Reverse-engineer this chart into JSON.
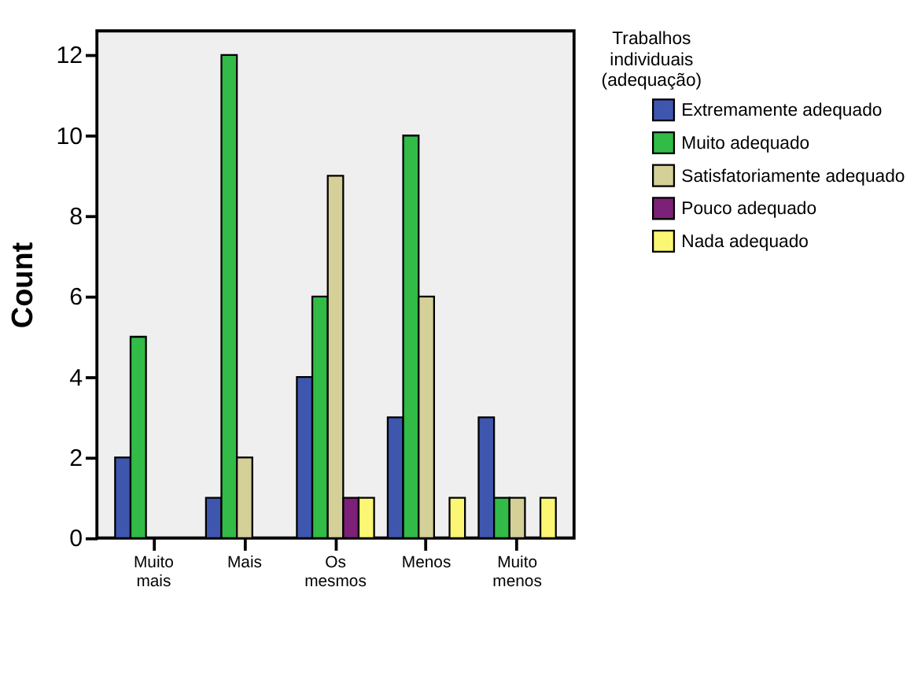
{
  "chart_data": {
    "type": "bar",
    "ylabel": "Count",
    "legend_title": "Trabalhos individuais (adequação)",
    "categories": [
      "Muito mais",
      "Mais",
      "Os mesmos",
      "Menos",
      "Muito menos"
    ],
    "series": [
      {
        "name": "Extremamente adequado",
        "color": "#3f56ae",
        "values": [
          2,
          1,
          4,
          3,
          3
        ]
      },
      {
        "name": "Muito adequado",
        "color": "#32bb46",
        "values": [
          5,
          12,
          6,
          10,
          1
        ]
      },
      {
        "name": "Satisfatoriamente adequado",
        "color": "#d5cf98",
        "values": [
          null,
          2,
          9,
          6,
          1
        ]
      },
      {
        "name": "Pouco adequado",
        "color": "#7d2178",
        "values": [
          null,
          null,
          1,
          null,
          null
        ]
      },
      {
        "name": "Nada adequado",
        "color": "#fbf674",
        "values": [
          null,
          null,
          1,
          1,
          1
        ]
      }
    ],
    "ylim": [
      0,
      12.6
    ],
    "yticks": [
      0,
      2,
      4,
      6,
      8,
      10,
      12
    ],
    "grid": false,
    "legend": "right"
  }
}
